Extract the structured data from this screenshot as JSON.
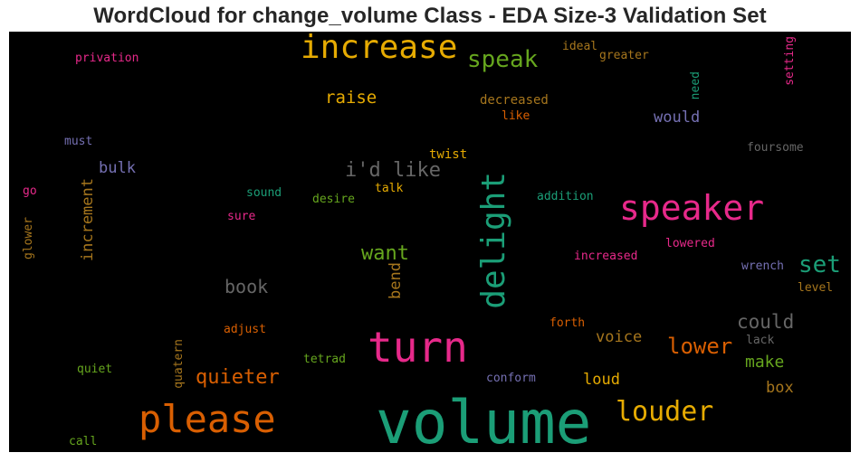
{
  "chart_data": {
    "type": "wordcloud",
    "title": "WordCloud for change_volume Class - EDA Size-3 Validation Set",
    "background": "#000000",
    "palette": "Dark2",
    "words": [
      {
        "text": "volume",
        "weight": 1.0,
        "color": "#1b9e77"
      },
      {
        "text": "please",
        "weight": 0.66,
        "color": "#d95f02"
      },
      {
        "text": "turn",
        "weight": 0.7,
        "color": "#e7298a"
      },
      {
        "text": "speaker",
        "weight": 0.6,
        "color": "#e7298a"
      },
      {
        "text": "increase",
        "weight": 0.58,
        "color": "#e6ab02"
      },
      {
        "text": "delight",
        "weight": 0.55,
        "color": "#1b9e77"
      },
      {
        "text": "louder",
        "weight": 0.45,
        "color": "#e6ab02"
      },
      {
        "text": "speak",
        "weight": 0.4,
        "color": "#66a61e"
      },
      {
        "text": "set",
        "weight": 0.4,
        "color": "#1b9e77"
      },
      {
        "text": "lower",
        "weight": 0.36,
        "color": "#d95f02"
      },
      {
        "text": "quieter",
        "weight": 0.34,
        "color": "#d95f02"
      },
      {
        "text": "i'd like",
        "weight": 0.34,
        "color": "#666666"
      },
      {
        "text": "want",
        "weight": 0.34,
        "color": "#66a61e"
      },
      {
        "text": "could",
        "weight": 0.32,
        "color": "#666666"
      },
      {
        "text": "book",
        "weight": 0.3,
        "color": "#666666"
      },
      {
        "text": "raise",
        "weight": 0.3,
        "color": "#e6ab02"
      },
      {
        "text": "make",
        "weight": 0.28,
        "color": "#66a61e"
      },
      {
        "text": "increment",
        "weight": 0.27,
        "color": "#a6761d"
      },
      {
        "text": "would",
        "weight": 0.26,
        "color": "#7570b3"
      },
      {
        "text": "voice",
        "weight": 0.26,
        "color": "#a6761d"
      },
      {
        "text": "loud",
        "weight": 0.26,
        "color": "#e6ab02"
      },
      {
        "text": "box",
        "weight": 0.26,
        "color": "#a6761d"
      },
      {
        "text": "bend",
        "weight": 0.25,
        "color": "#a6761d"
      },
      {
        "text": "bulk",
        "weight": 0.25,
        "color": "#7570b3"
      },
      {
        "text": "twist",
        "weight": 0.2,
        "color": "#e6ab02"
      },
      {
        "text": "decreased",
        "weight": 0.2,
        "color": "#a6761d"
      },
      {
        "text": "like",
        "weight": 0.19,
        "color": "#d95f02"
      },
      {
        "text": "foursome",
        "weight": 0.19,
        "color": "#666666"
      },
      {
        "text": "privation",
        "weight": 0.19,
        "color": "#e7298a"
      },
      {
        "text": "ideal",
        "weight": 0.19,
        "color": "#a6761d"
      },
      {
        "text": "greater",
        "weight": 0.19,
        "color": "#a6761d"
      },
      {
        "text": "must",
        "weight": 0.18,
        "color": "#7570b3"
      },
      {
        "text": "need",
        "weight": 0.18,
        "color": "#1b9e77"
      },
      {
        "text": "setting",
        "weight": 0.18,
        "color": "#e7298a"
      },
      {
        "text": "sound",
        "weight": 0.18,
        "color": "#1b9e77"
      },
      {
        "text": "desire",
        "weight": 0.18,
        "color": "#66a61e"
      },
      {
        "text": "talk",
        "weight": 0.18,
        "color": "#e6ab02"
      },
      {
        "text": "addition",
        "weight": 0.18,
        "color": "#1b9e77"
      },
      {
        "text": "sure",
        "weight": 0.18,
        "color": "#e7298a"
      },
      {
        "text": "go",
        "weight": 0.18,
        "color": "#e7298a"
      },
      {
        "text": "glower",
        "weight": 0.18,
        "color": "#a6761d"
      },
      {
        "text": "lowered",
        "weight": 0.18,
        "color": "#e7298a"
      },
      {
        "text": "increased",
        "weight": 0.18,
        "color": "#e7298a"
      },
      {
        "text": "wrench",
        "weight": 0.18,
        "color": "#7570b3"
      },
      {
        "text": "level",
        "weight": 0.18,
        "color": "#a6761d"
      },
      {
        "text": "forth",
        "weight": 0.18,
        "color": "#d95f02"
      },
      {
        "text": "adjust",
        "weight": 0.18,
        "color": "#d95f02"
      },
      {
        "text": "lack",
        "weight": 0.18,
        "color": "#666666"
      },
      {
        "text": "tetrad",
        "weight": 0.18,
        "color": "#66a61e"
      },
      {
        "text": "quatern",
        "weight": 0.18,
        "color": "#a6761d"
      },
      {
        "text": "quiet",
        "weight": 0.18,
        "color": "#66a61e"
      },
      {
        "text": "conform",
        "weight": 0.18,
        "color": "#7570b3"
      },
      {
        "text": "call",
        "weight": 0.18,
        "color": "#66a61e"
      }
    ]
  }
}
